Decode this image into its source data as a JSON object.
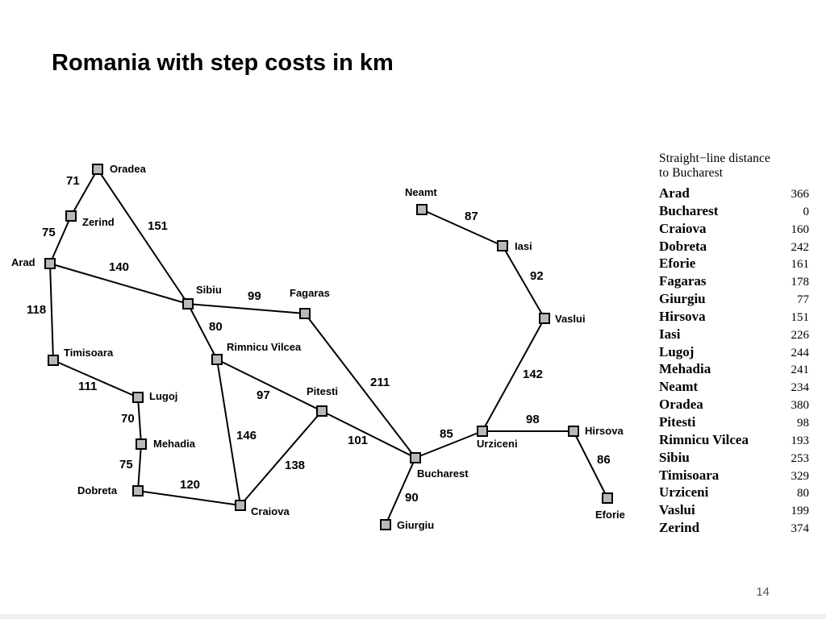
{
  "title": "Romania with step costs in km",
  "page_number": "14",
  "map": {
    "cities": [
      {
        "name": "Oradea"
      },
      {
        "name": "Zerind"
      },
      {
        "name": "Arad"
      },
      {
        "name": "Timisoara"
      },
      {
        "name": "Lugoj"
      },
      {
        "name": "Mehadia"
      },
      {
        "name": "Dobreta"
      },
      {
        "name": "Craiova"
      },
      {
        "name": "Sibiu"
      },
      {
        "name": "Rimnicu Vilcea"
      },
      {
        "name": "Fagaras"
      },
      {
        "name": "Pitesti"
      },
      {
        "name": "Bucharest"
      },
      {
        "name": "Giurgiu"
      },
      {
        "name": "Urziceni"
      },
      {
        "name": "Hirsova"
      },
      {
        "name": "Eforie"
      },
      {
        "name": "Vaslui"
      },
      {
        "name": "Iasi"
      },
      {
        "name": "Neamt"
      }
    ],
    "roads": [
      {
        "from": "Oradea",
        "to": "Zerind",
        "cost": 71
      },
      {
        "from": "Zerind",
        "to": "Arad",
        "cost": 75
      },
      {
        "from": "Oradea",
        "to": "Sibiu",
        "cost": 151
      },
      {
        "from": "Arad",
        "to": "Sibiu",
        "cost": 140
      },
      {
        "from": "Arad",
        "to": "Timisoara",
        "cost": 118
      },
      {
        "from": "Timisoara",
        "to": "Lugoj",
        "cost": 111
      },
      {
        "from": "Lugoj",
        "to": "Mehadia",
        "cost": 70
      },
      {
        "from": "Mehadia",
        "to": "Dobreta",
        "cost": 75
      },
      {
        "from": "Dobreta",
        "to": "Craiova",
        "cost": 120
      },
      {
        "from": "Sibiu",
        "to": "Fagaras",
        "cost": 99
      },
      {
        "from": "Sibiu",
        "to": "Rimnicu Vilcea",
        "cost": 80
      },
      {
        "from": "Rimnicu Vilcea",
        "to": "Pitesti",
        "cost": 97
      },
      {
        "from": "Rimnicu Vilcea",
        "to": "Craiova",
        "cost": 146
      },
      {
        "from": "Craiova",
        "to": "Pitesti",
        "cost": 138
      },
      {
        "from": "Pitesti",
        "to": "Bucharest",
        "cost": 101
      },
      {
        "from": "Fagaras",
        "to": "Bucharest",
        "cost": 211
      },
      {
        "from": "Bucharest",
        "to": "Giurgiu",
        "cost": 90
      },
      {
        "from": "Bucharest",
        "to": "Urziceni",
        "cost": 85
      },
      {
        "from": "Urziceni",
        "to": "Hirsova",
        "cost": 98
      },
      {
        "from": "Hirsova",
        "to": "Eforie",
        "cost": 86
      },
      {
        "from": "Urziceni",
        "to": "Vaslui",
        "cost": 142
      },
      {
        "from": "Vaslui",
        "to": "Iasi",
        "cost": 92
      },
      {
        "from": "Iasi",
        "to": "Neamt",
        "cost": 87
      }
    ]
  },
  "sld_table": {
    "caption_line1": "Straight−line distance",
    "caption_line2": "to Bucharest",
    "rows": [
      {
        "city": "Arad",
        "value": "366"
      },
      {
        "city": "Bucharest",
        "value": "0"
      },
      {
        "city": "Craiova",
        "value": "160"
      },
      {
        "city": "Dobreta",
        "value": "242"
      },
      {
        "city": "Eforie",
        "value": "161"
      },
      {
        "city": "Fagaras",
        "value": "178"
      },
      {
        "city": "Giurgiu",
        "value": "77"
      },
      {
        "city": "Hirsova",
        "value": "151"
      },
      {
        "city": "Iasi",
        "value": "226"
      },
      {
        "city": "Lugoj",
        "value": "244"
      },
      {
        "city": "Mehadia",
        "value": "241"
      },
      {
        "city": "Neamt",
        "value": "234"
      },
      {
        "city": "Oradea",
        "value": "380"
      },
      {
        "city": "Pitesti",
        "value": "98"
      },
      {
        "city": "Rimnicu Vilcea",
        "value": "193"
      },
      {
        "city": "Sibiu",
        "value": "253"
      },
      {
        "city": "Timisoara",
        "value": "329"
      },
      {
        "city": "Urziceni",
        "value": "80"
      },
      {
        "city": "Vaslui",
        "value": "199"
      },
      {
        "city": "Zerind",
        "value": "374"
      }
    ]
  }
}
